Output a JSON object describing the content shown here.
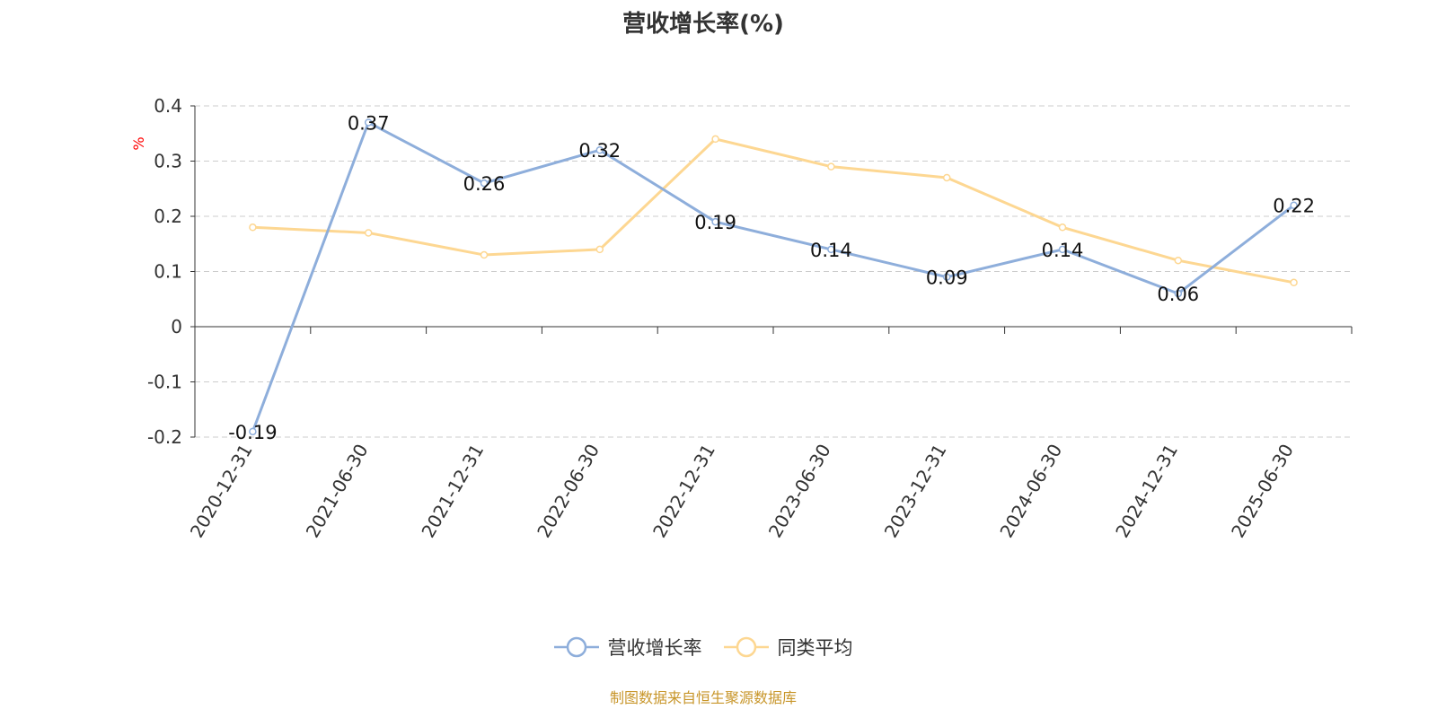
{
  "chart_data": {
    "type": "line",
    "title": "营收增长率(%)",
    "ylabel": "%",
    "ylim": [
      -0.2,
      0.4
    ],
    "yticks": [
      "0.4",
      "0.3",
      "0.2",
      "0.1",
      "0",
      "-0.1",
      "-0.2"
    ],
    "grid": true,
    "legend_position": "bottom",
    "categories": [
      "2020-12-31",
      "2021-06-30",
      "2021-12-31",
      "2022-06-30",
      "2022-12-31",
      "2023-06-30",
      "2023-12-31",
      "2024-06-30",
      "2024-12-31",
      "2025-06-30"
    ],
    "series": [
      {
        "name": "营收增长率",
        "color": "#8eaedb",
        "values": [
          -0.19,
          0.37,
          0.26,
          0.32,
          0.19,
          0.14,
          0.09,
          0.14,
          0.06,
          0.22
        ],
        "labels": [
          "-0.19",
          "0.37",
          "0.26",
          "0.32",
          "0.19",
          "0.14",
          "0.09",
          "0.14",
          "0.06",
          "0.22"
        ]
      },
      {
        "name": "同类平均",
        "color": "#fdd792",
        "values": [
          0.18,
          0.17,
          0.13,
          0.14,
          0.34,
          0.29,
          0.27,
          0.18,
          0.12,
          0.08
        ]
      }
    ]
  },
  "footer": "制图数据来自恒生聚源数据库"
}
